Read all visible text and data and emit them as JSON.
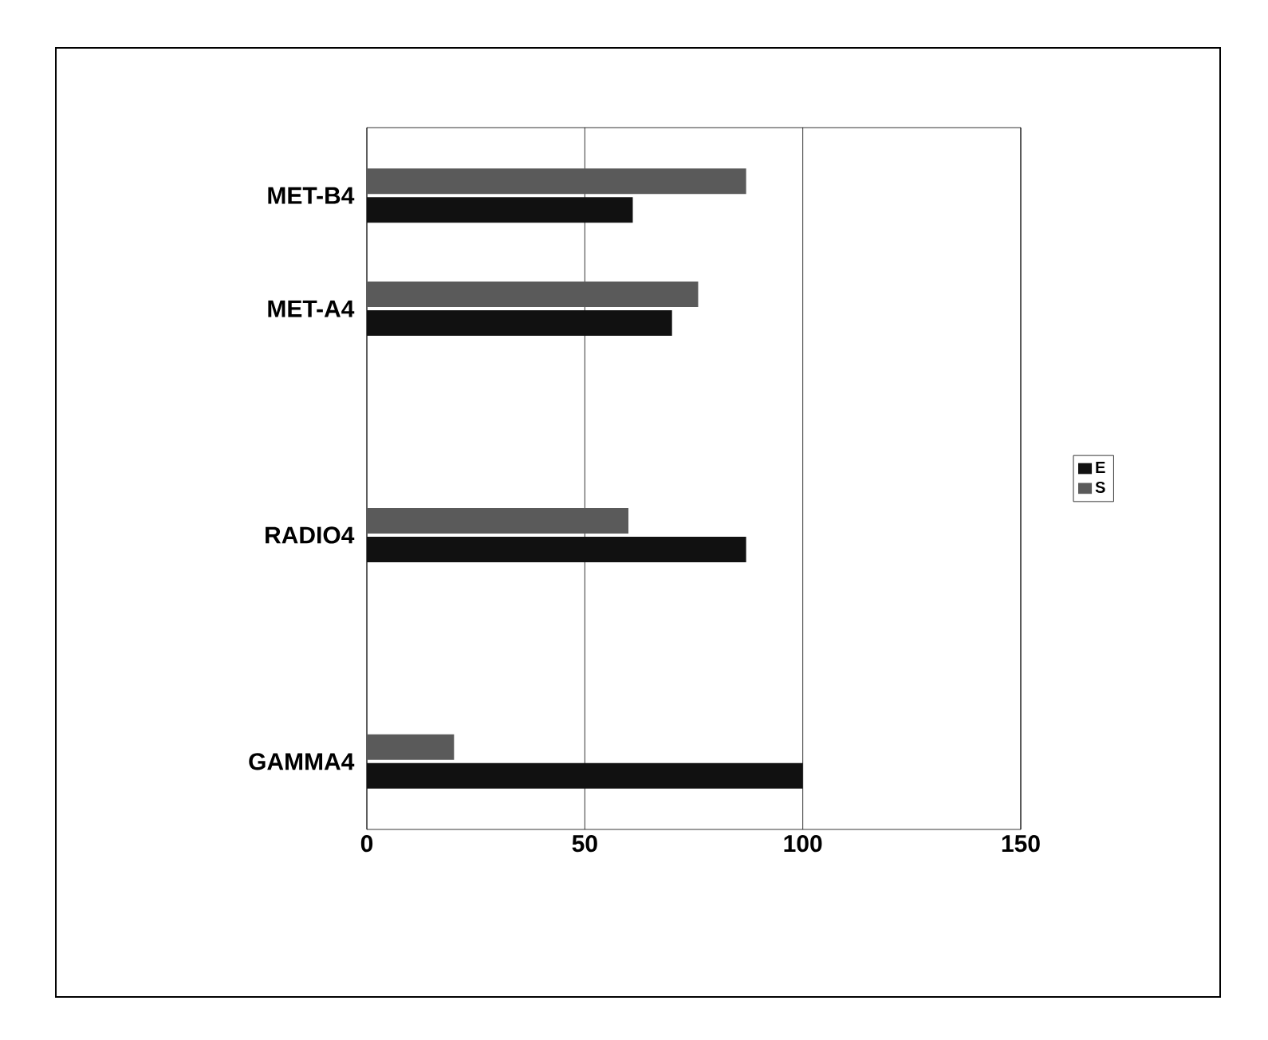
{
  "chart_data": {
    "type": "bar",
    "orientation": "horizontal",
    "categories": [
      "MET-B4",
      "MET-A4",
      null,
      "RADIO4",
      null,
      "GAMMA4"
    ],
    "series": [
      {
        "name": "E",
        "color": "#111111",
        "values": [
          61,
          70,
          null,
          87,
          null,
          100
        ]
      },
      {
        "name": "S",
        "color": "#5a5a5a",
        "values": [
          87,
          76,
          null,
          60,
          null,
          20
        ]
      }
    ],
    "xlim": [
      0,
      150
    ],
    "xticks": [
      0,
      50,
      100,
      150
    ],
    "grid": "x",
    "legend": "right"
  }
}
